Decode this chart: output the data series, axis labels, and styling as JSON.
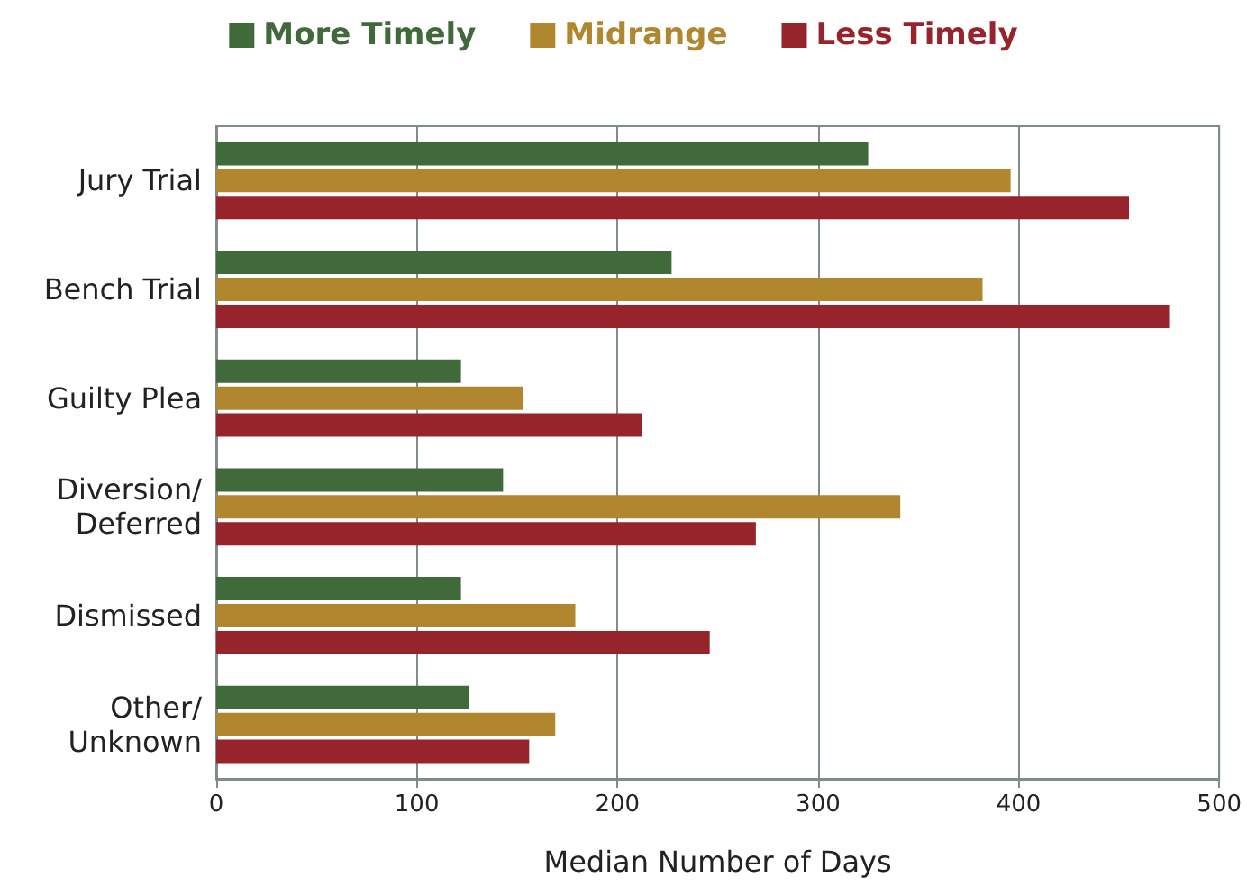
{
  "chart_data": {
    "type": "bar",
    "orientation": "horizontal",
    "xlabel": "Median Number of Days",
    "categories": [
      "Jury Trial",
      "Bench Trial",
      "Guilty Plea",
      "Diversion/\nDeferred",
      "Dismissed",
      "Other/\nUnknown"
    ],
    "series": [
      {
        "name": "More Timely",
        "color": "#416a3b",
        "values": [
          325,
          227,
          122,
          143,
          122,
          126
        ]
      },
      {
        "name": "Midrange",
        "color": "#b0872f",
        "values": [
          396,
          382,
          153,
          341,
          179,
          169
        ]
      },
      {
        "name": "Less Timely",
        "color": "#97242b",
        "values": [
          455,
          475,
          212,
          269,
          246,
          156
        ]
      }
    ],
    "xlim": [
      0,
      500
    ],
    "xticks": [
      0,
      100,
      200,
      300,
      400,
      500
    ],
    "grid": "x",
    "legend": "top"
  }
}
